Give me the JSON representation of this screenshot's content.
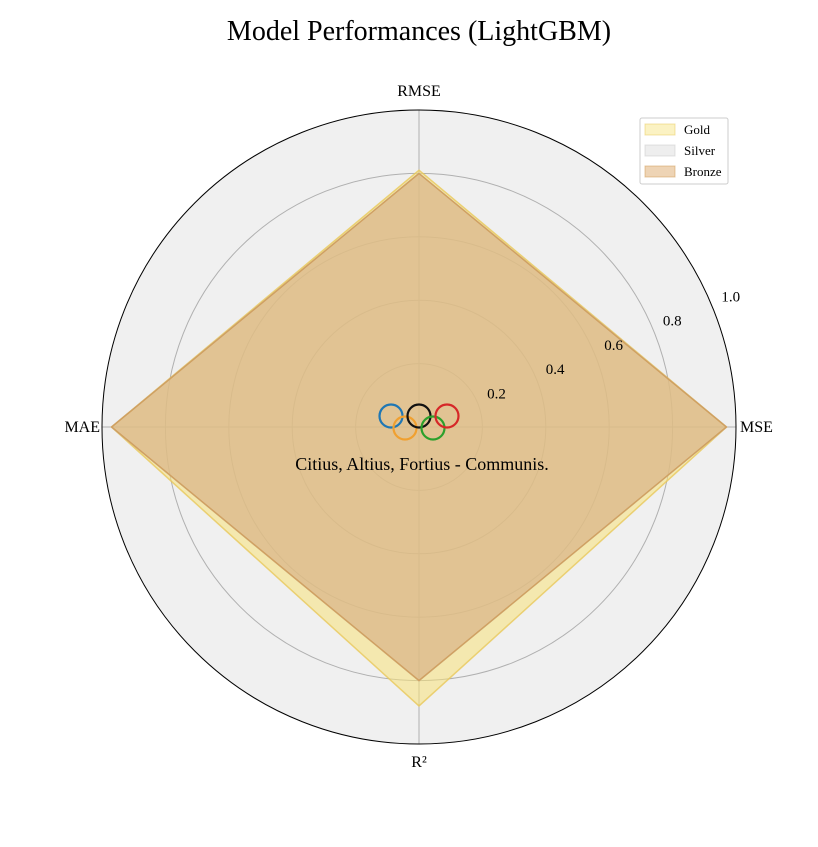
{
  "chart_data": {
    "type": "radar",
    "title": "Model Performances (LightGBM)",
    "axes": [
      "RMSE",
      "MSE",
      "R²",
      "MAE"
    ],
    "rlim": [
      0,
      1.0
    ],
    "rticks": [
      0.2,
      0.4,
      0.6,
      0.8,
      1.0
    ],
    "rtick_labels": [
      "0.2",
      "0.4",
      "0.6",
      "0.8",
      "1.0"
    ],
    "grid": true,
    "legend_position": "top-right",
    "series": [
      {
        "name": "Gold",
        "values": [
          0.81,
          0.97,
          0.88,
          0.97
        ],
        "fill": "#F7E27A",
        "edge": "#E8C85A"
      },
      {
        "name": "Silver",
        "values": [
          0.8,
          0.97,
          0.8,
          0.97
        ],
        "fill": "#D9D9D9",
        "edge": "#C8C8C8"
      },
      {
        "name": "Bronze",
        "values": [
          0.8,
          0.97,
          0.8,
          0.97
        ],
        "fill": "#D9A05B",
        "edge": "#D09850"
      }
    ],
    "annotation": "Citius, Altius, Fortius - Communis.",
    "rings_colors": [
      "#1F77B4",
      "#F0A030",
      "#111111",
      "#2CA02C",
      "#D62728"
    ]
  }
}
